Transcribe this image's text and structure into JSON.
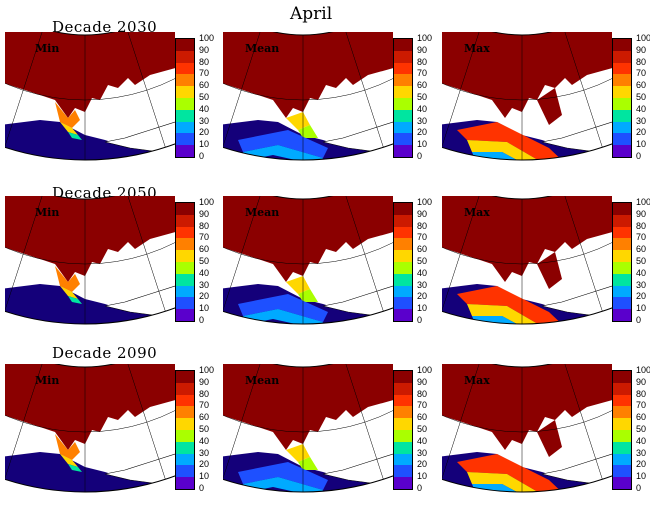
{
  "chart_data": {
    "type": "heatmap",
    "title": "April",
    "colorbar": {
      "ticks": [
        "100",
        "90",
        "80",
        "70",
        "60",
        "50",
        "40",
        "30",
        "20",
        "10",
        "0"
      ],
      "colors": [
        "#8b0000",
        "#cc1a00",
        "#ff3300",
        "#ff8000",
        "#ffd700",
        "#aaff00",
        "#00e5a0",
        "#00aaff",
        "#1e50ff",
        "#5a00cc",
        "#14007a"
      ]
    },
    "rows": [
      {
        "decade": "Decade 2030",
        "panels": [
          {
            "label": "Min",
            "ice_extent": "low"
          },
          {
            "label": "Mean",
            "ice_extent": "medium"
          },
          {
            "label": "Max",
            "ice_extent": "high"
          }
        ]
      },
      {
        "decade": "Decade 2050",
        "panels": [
          {
            "label": "Min",
            "ice_extent": "low"
          },
          {
            "label": "Mean",
            "ice_extent": "medium"
          },
          {
            "label": "Max",
            "ice_extent": "high"
          }
        ]
      },
      {
        "decade": "Decade 2090",
        "panels": [
          {
            "label": "Min",
            "ice_extent": "low"
          },
          {
            "label": "Mean",
            "ice_extent": "medium"
          },
          {
            "label": "Max",
            "ice_extent": "high"
          }
        ]
      }
    ]
  }
}
